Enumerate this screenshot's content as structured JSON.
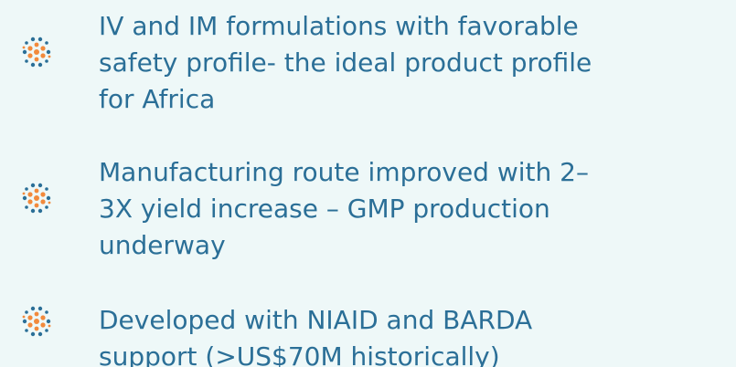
{
  "items": [
    {
      "lines": [
        "IV and IM formulations with favorable",
        "safety profile- the ideal product profile",
        "for Africa"
      ]
    },
    {
      "lines": [
        "Manufacturing route improved with 2–",
        "3X yield increase – GMP production",
        "underway"
      ]
    },
    {
      "lines": [
        "Developed with NIAID and BARDA",
        "support (>US$70M historically)"
      ]
    }
  ]
}
